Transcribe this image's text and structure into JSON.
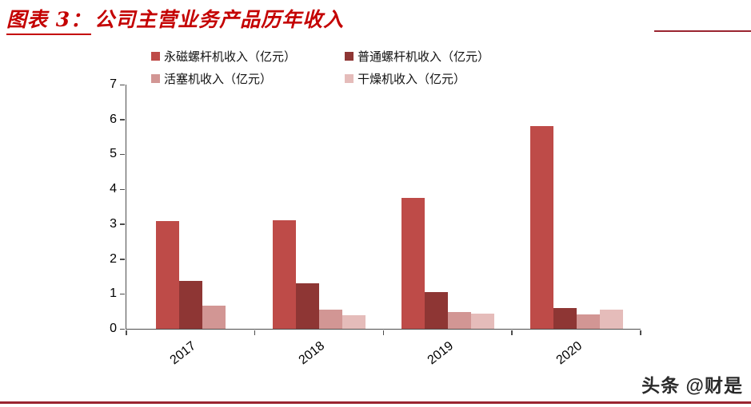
{
  "figure": {
    "label": "图表 3：",
    "title": "公司主营业务产品历年收入"
  },
  "watermark": "头条 @财是",
  "colors": {
    "title_red": "#C40000",
    "rule_red": "#9A2430",
    "axis": "#4d4d4d",
    "series": [
      "#BE4B48",
      "#8E3634",
      "#D29694",
      "#E5BCBA"
    ]
  },
  "chart_data": {
    "type": "bar",
    "title": "公司主营业务产品历年收入",
    "categories": [
      "2017",
      "2018",
      "2019",
      "2020"
    ],
    "series": [
      {
        "name": "永磁螺杆机收入（亿元）",
        "color": "#BE4B48",
        "values": [
          3.1,
          3.12,
          3.75,
          5.8
        ]
      },
      {
        "name": "普通螺杆机收入（亿元）",
        "color": "#8E3634",
        "values": [
          1.38,
          1.3,
          1.05,
          0.6
        ]
      },
      {
        "name": "活塞机收入（亿元）",
        "color": "#D29694",
        "values": [
          0.66,
          0.56,
          0.47,
          0.42
        ]
      },
      {
        "name": "干燥机收入（亿元）",
        "color": "#E5BCBA",
        "values": [
          0,
          0.4,
          0.43,
          0.55
        ]
      }
    ],
    "xlabel": "",
    "ylabel": "",
    "ylim": [
      0,
      7
    ],
    "yticks": [
      0,
      1,
      2,
      3,
      4,
      5,
      6,
      7
    ],
    "grid": false,
    "legend_position": "top"
  }
}
